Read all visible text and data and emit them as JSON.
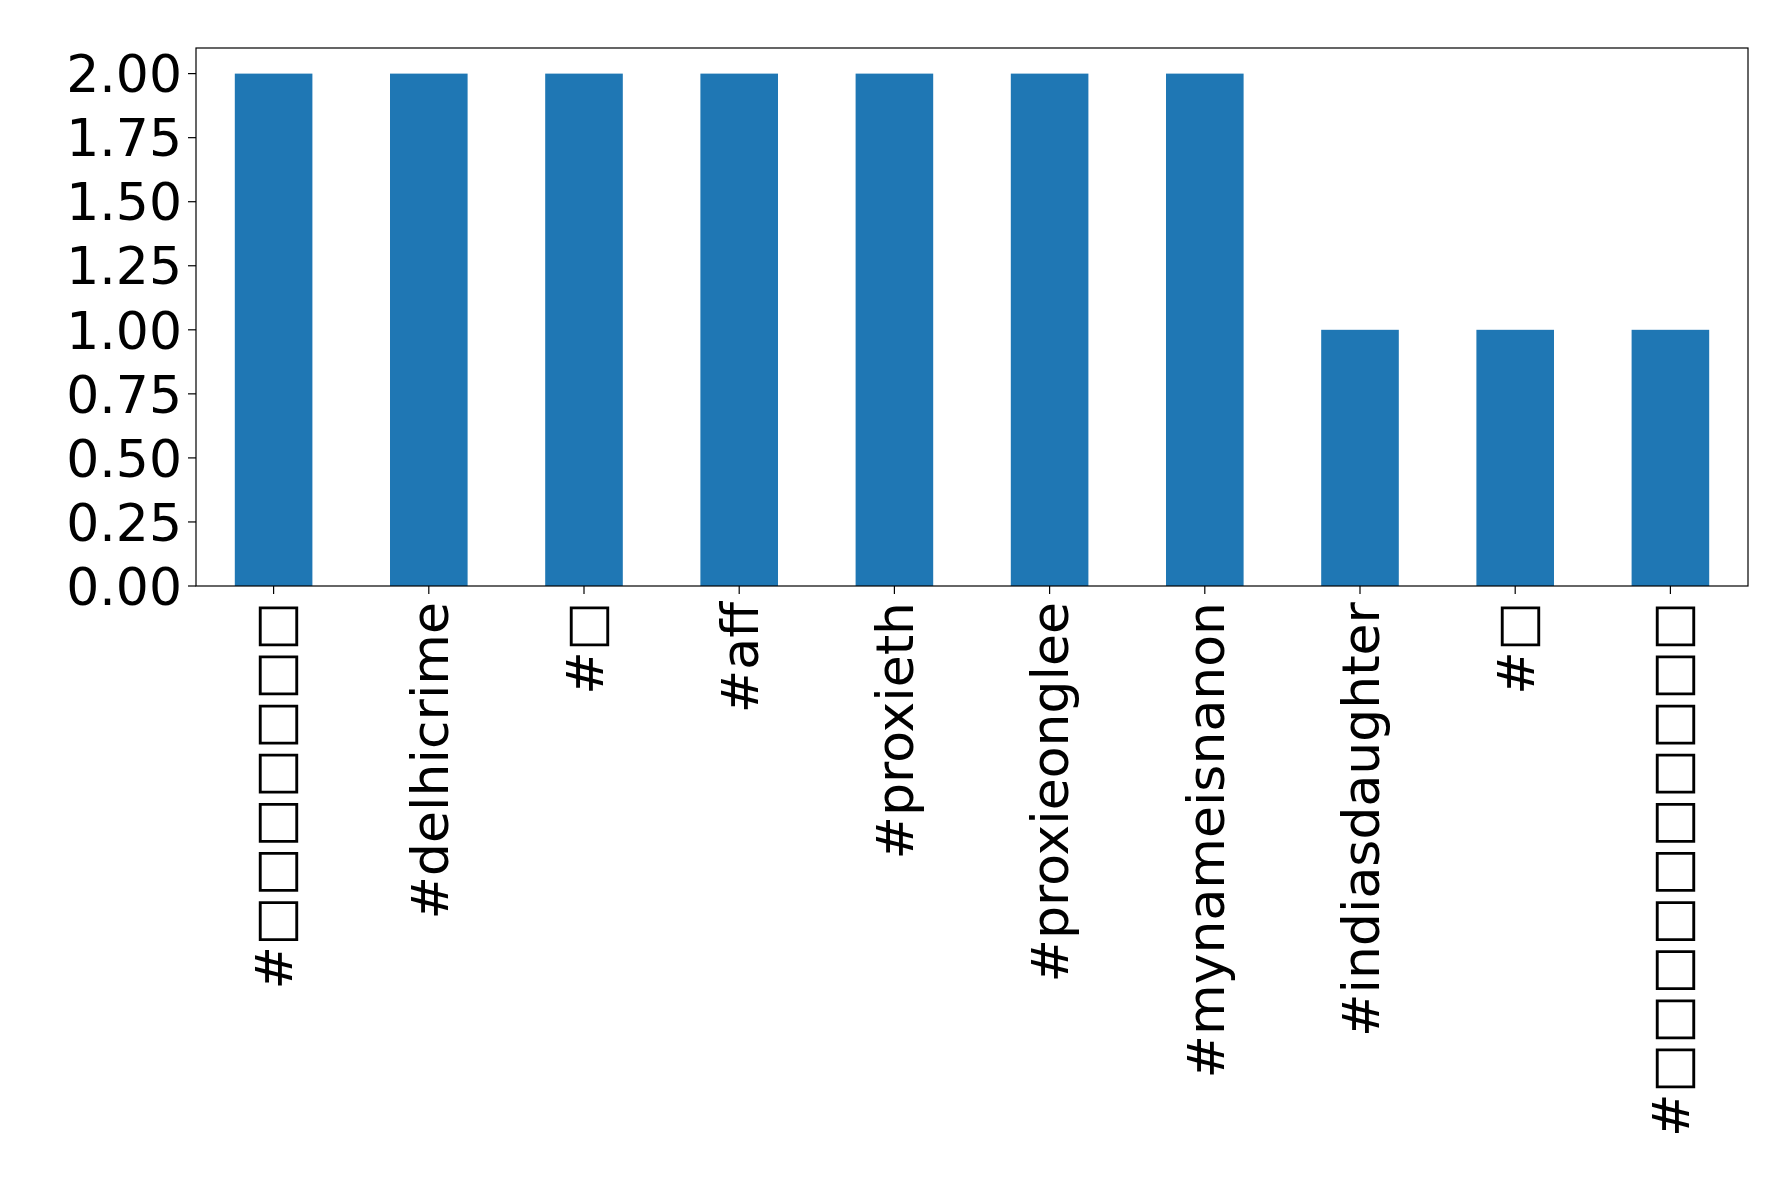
{
  "chart_data": {
    "type": "bar",
    "categories": [
      "#□□□□□□□",
      "#delhicrime",
      "#□",
      "#aff",
      "#proxieth",
      "#proxieonglee",
      "#mynameisnanon",
      "#indiasdaughter",
      "#□",
      "#□□□□□□□□□□"
    ],
    "values": [
      2,
      2,
      2,
      2,
      2,
      2,
      2,
      1,
      1,
      1
    ],
    "color": "#1f77b4",
    "ylim": [
      0,
      2.1
    ],
    "yticks": [
      {
        "value": 0,
        "label": "0.00"
      },
      {
        "value": 0.25,
        "label": "0.25"
      },
      {
        "value": 0.5,
        "label": "0.50"
      },
      {
        "value": 0.75,
        "label": "0.75"
      },
      {
        "value": 1,
        "label": "1.00"
      },
      {
        "value": 1.25,
        "label": "1.25"
      },
      {
        "value": 1.5,
        "label": "1.50"
      },
      {
        "value": 1.75,
        "label": "1.75"
      },
      {
        "value": 2,
        "label": "2.00"
      }
    ],
    "grid": false
  }
}
